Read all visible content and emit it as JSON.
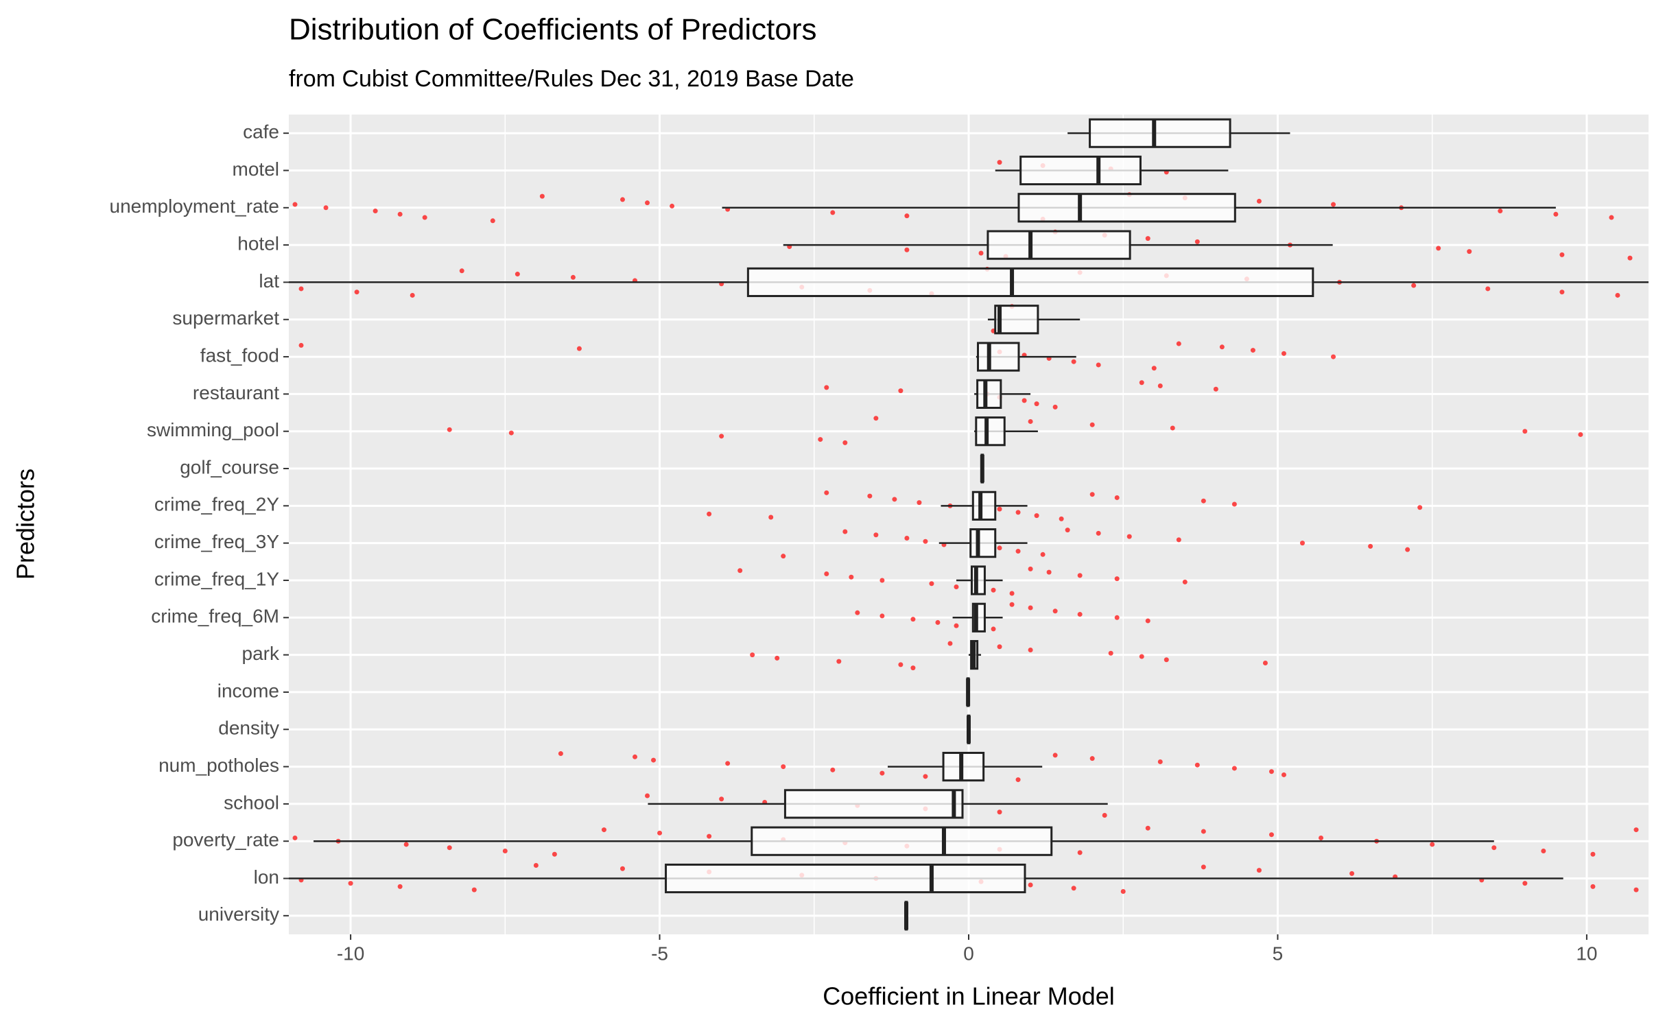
{
  "chart_data": {
    "type": "boxplot",
    "orientation": "horizontal",
    "title": "Distribution of Coefficients of Predictors",
    "subtitle": "from Cubist Committee/Rules  Dec 31, 2019 Base Date",
    "x_label": "Coefficient in Linear Model",
    "y_label": "Predictors",
    "xlim": [
      -11,
      11
    ],
    "xticks": [
      -10,
      -5,
      0,
      5,
      10
    ],
    "x_minor_grid": [
      -7.5,
      -2.5,
      2.5,
      7.5
    ],
    "grid": true,
    "point_color": "#ff0000",
    "categories": [
      "cafe",
      "motel",
      "unemployment_rate",
      "hotel",
      "lat",
      "supermarket",
      "fast_food",
      "restaurant",
      "swimming_pool",
      "golf_course",
      "crime_freq_2Y",
      "crime_freq_3Y",
      "crime_freq_1Y",
      "crime_freq_6M",
      "park",
      "income",
      "density",
      "num_potholes",
      "school",
      "poverty_rate",
      "lon",
      "university"
    ],
    "boxes": [
      {
        "min": 1.6,
        "q1": 1.96,
        "median": 3.0,
        "q3": 4.23,
        "max": 5.2
      },
      {
        "min": 0.43,
        "q1": 0.84,
        "median": 2.1,
        "q3": 2.78,
        "max": 4.2
      },
      {
        "min": -3.99,
        "q1": 0.81,
        "median": 1.8,
        "q3": 4.31,
        "max": 9.5
      },
      {
        "min": -3.0,
        "q1": 0.31,
        "median": 1.0,
        "q3": 2.61,
        "max": 5.89
      },
      {
        "min": -11.2,
        "q1": -3.57,
        "median": 0.7,
        "q3": 5.57,
        "max": 11.2
      },
      {
        "min": 0.31,
        "q1": 0.43,
        "median": 0.5,
        "q3": 1.12,
        "max": 1.8
      },
      {
        "min": 0.12,
        "q1": 0.15,
        "median": 0.33,
        "q3": 0.81,
        "max": 1.74
      },
      {
        "min": 0.09,
        "q1": 0.14,
        "median": 0.27,
        "q3": 0.52,
        "max": 1.0
      },
      {
        "min": 0.09,
        "q1": 0.12,
        "median": 0.29,
        "q3": 0.58,
        "max": 1.12
      },
      {
        "min": 0.2,
        "q1": 0.21,
        "median": 0.22,
        "q3": 0.23,
        "max": 0.24
      },
      {
        "min": -0.45,
        "q1": 0.07,
        "median": 0.19,
        "q3": 0.43,
        "max": 0.95
      },
      {
        "min": -0.48,
        "q1": 0.03,
        "median": 0.15,
        "q3": 0.43,
        "max": 0.95
      },
      {
        "min": -0.2,
        "q1": 0.05,
        "median": 0.12,
        "q3": 0.26,
        "max": 0.55
      },
      {
        "min": -0.26,
        "q1": 0.07,
        "median": 0.12,
        "q3": 0.26,
        "max": 0.55
      },
      {
        "min": 0.0,
        "q1": 0.04,
        "median": 0.08,
        "q3": 0.14,
        "max": 0.2
      },
      {
        "min": -0.03,
        "q1": -0.02,
        "median": -0.01,
        "q3": 0.0,
        "max": 0.01
      },
      {
        "min": -0.02,
        "q1": -0.01,
        "median": 0.0,
        "q3": 0.01,
        "max": 0.02
      },
      {
        "min": -1.31,
        "q1": -0.41,
        "median": -0.12,
        "q3": 0.24,
        "max": 1.19
      },
      {
        "min": -5.19,
        "q1": -2.97,
        "median": -0.24,
        "q3": -0.1,
        "max": 2.25
      },
      {
        "min": -10.6,
        "q1": -3.51,
        "median": -0.4,
        "q3": 1.34,
        "max": 8.5
      },
      {
        "min": -11.2,
        "q1": -4.9,
        "median": -0.6,
        "q3": 0.91,
        "max": 9.62
      },
      {
        "min": -1.03,
        "q1": -1.02,
        "median": -1.01,
        "q3": -1.0,
        "max": -0.99
      }
    ],
    "points": [
      [],
      [
        0.5,
        1.2,
        2.3,
        3.2
      ],
      [
        -10.9,
        -10.4,
        -9.6,
        -9.2,
        -8.8,
        -7.7,
        -6.9,
        -5.6,
        -5.2,
        -4.8,
        -3.9,
        -2.2,
        -1.0,
        1.2,
        2.6,
        3.5,
        4.7,
        5.9,
        7.0,
        8.6,
        9.5,
        10.4
      ],
      [
        -2.9,
        -1.0,
        0.2,
        0.6,
        1.4,
        2.2,
        2.9,
        3.7,
        5.2,
        7.6,
        8.1,
        9.6,
        10.7
      ],
      [
        -10.8,
        -9.9,
        -9.0,
        -8.2,
        -7.3,
        -6.4,
        -5.4,
        -4.0,
        -2.7,
        -1.6,
        -0.6,
        0.3,
        1.8,
        3.2,
        4.5,
        6.0,
        7.2,
        8.4,
        9.6,
        10.5
      ],
      [
        0.4,
        0.7
      ],
      [
        -10.8,
        -6.3,
        0.5,
        0.9,
        1.3,
        1.7,
        2.1,
        3.0,
        3.4,
        4.1,
        4.6,
        5.1,
        5.9
      ],
      [
        -2.3,
        -1.1,
        0.3,
        0.5,
        0.9,
        1.1,
        1.4,
        2.8,
        3.1,
        4.0
      ],
      [
        -8.4,
        -7.4,
        -4.0,
        -2.4,
        -2.0,
        -1.5,
        1.0,
        2.0,
        3.3,
        9.0,
        9.9
      ],
      [],
      [
        -4.2,
        -3.2,
        -2.3,
        -1.6,
        -1.2,
        -0.8,
        -0.3,
        0.5,
        0.8,
        1.1,
        1.5,
        2.0,
        2.4,
        3.8,
        4.3,
        7.3
      ],
      [
        -3.0,
        -2.0,
        -1.5,
        -1.0,
        -0.7,
        -0.4,
        0.5,
        0.8,
        1.2,
        1.6,
        2.1,
        2.6,
        3.4,
        5.4,
        6.5,
        7.1
      ],
      [
        -3.7,
        -2.3,
        -1.9,
        -1.4,
        -0.6,
        -0.2,
        0.4,
        0.7,
        1.0,
        1.3,
        1.8,
        2.4,
        3.5
      ],
      [
        -1.8,
        -1.4,
        -0.9,
        -0.5,
        -0.2,
        0.4,
        0.7,
        1.0,
        1.4,
        1.8,
        2.4,
        2.9
      ],
      [
        -3.5,
        -3.1,
        -2.1,
        -1.1,
        -0.9,
        -0.3,
        0.5,
        1.0,
        2.3,
        2.8,
        3.2,
        4.8
      ],
      [],
      [],
      [
        -6.6,
        -5.4,
        -5.1,
        -3.9,
        -3.0,
        -2.2,
        -1.4,
        -0.7,
        0.8,
        1.4,
        2.0,
        3.1,
        3.7,
        4.3,
        4.9,
        5.1
      ],
      [
        -5.2,
        -4.0,
        -3.3,
        -1.8,
        -0.7,
        0.5,
        2.2
      ],
      [
        -10.9,
        -10.2,
        -9.1,
        -8.4,
        -7.5,
        -6.7,
        -5.9,
        -5.0,
        -4.2,
        -3.0,
        -2.0,
        -1.0,
        0.5,
        1.8,
        2.9,
        3.8,
        4.9,
        5.7,
        6.6,
        7.5,
        8.5,
        9.3,
        10.1,
        10.8
      ],
      [
        -10.8,
        -10.0,
        -9.2,
        -8.0,
        -7.0,
        -5.6,
        -4.2,
        -2.7,
        -1.5,
        0.2,
        1.0,
        1.7,
        2.5,
        3.8,
        4.7,
        6.2,
        6.9,
        8.3,
        9.0,
        10.1,
        10.8
      ],
      []
    ]
  }
}
